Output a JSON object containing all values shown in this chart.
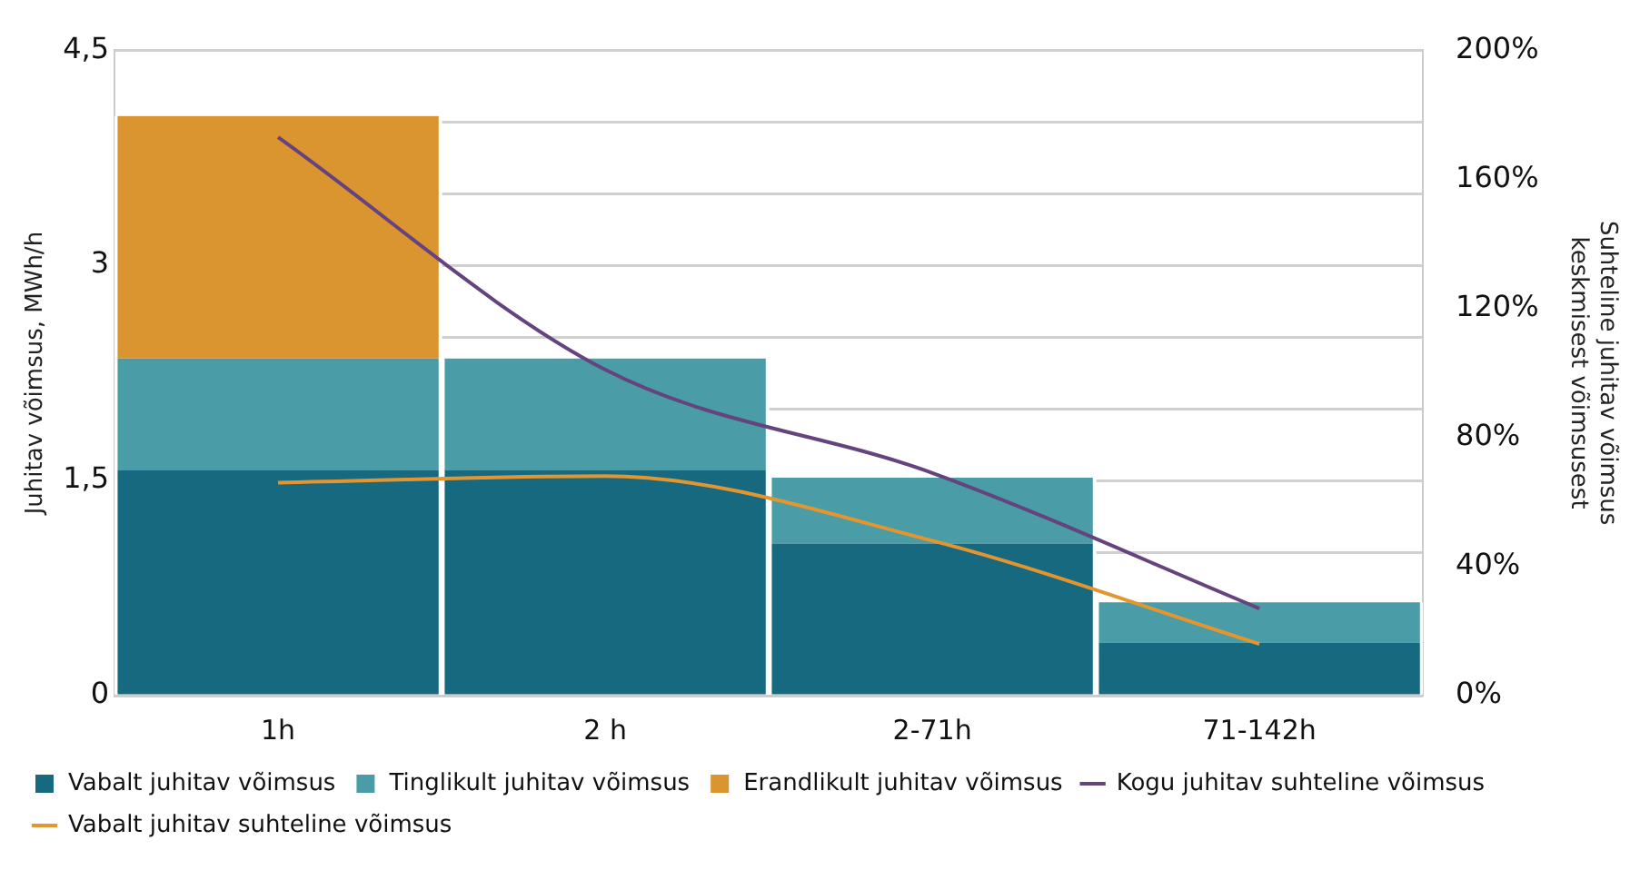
{
  "chart_data": {
    "type": "bar",
    "stacked": true,
    "ylabel": "Juhitav võimsus, MWh/h",
    "y2label": "Suhteline juhitav võimsus keskmisest võimsusest",
    "categories": [
      "1h",
      "2 h",
      "2-71h",
      "71-142h"
    ],
    "series": [
      {
        "name": "Vabalt juhitav võimsus",
        "color": "#17697f",
        "values": [
          1.57,
          1.57,
          1.06,
          0.37
        ]
      },
      {
        "name": "Tinglikult juhitav võimsus",
        "color": "#4a9ca6",
        "values": [
          0.78,
          0.78,
          0.46,
          0.28
        ]
      },
      {
        "name": "Erandlikult juhitav võimsus",
        "color": "#da9530",
        "values": [
          1.69,
          null,
          null,
          null
        ]
      },
      {
        "name": "Kogu juhitav suhteline võimsus",
        "type": "line",
        "axis": "y2",
        "color": "#65437f",
        "values": [
          173,
          101,
          69,
          27
        ]
      },
      {
        "name": "Vabalt juhitav suhteline võimsus",
        "type": "line",
        "axis": "y2",
        "color": "#e3962f",
        "values": [
          66,
          68,
          48,
          16
        ]
      }
    ],
    "ylim": [
      0,
      4.5
    ],
    "yticks": [
      0,
      {
        "value": 1,
        "label": null
      },
      {
        "value": 1.5,
        "label": "1,5"
      },
      {
        "value": 2,
        "label": null
      },
      {
        "value": 2.5,
        "label": null
      },
      3,
      {
        "value": 3.5,
        "label": null
      },
      {
        "value": 4,
        "label": null
      },
      {
        "value": 4.5,
        "label": "4,5"
      }
    ],
    "y2lim": [
      0,
      200
    ],
    "y2ticks": [
      {
        "value": 0,
        "label": "0%"
      },
      {
        "value": 40,
        "label": "40%"
      },
      {
        "value": 80,
        "label": "80%"
      },
      {
        "value": 120,
        "label": "120%"
      },
      {
        "value": 160,
        "label": "160%"
      },
      {
        "value": 200,
        "label": "200%"
      }
    ],
    "grid": "y",
    "legend": "bottom",
    "marker": "none",
    "line_style": "solid"
  }
}
